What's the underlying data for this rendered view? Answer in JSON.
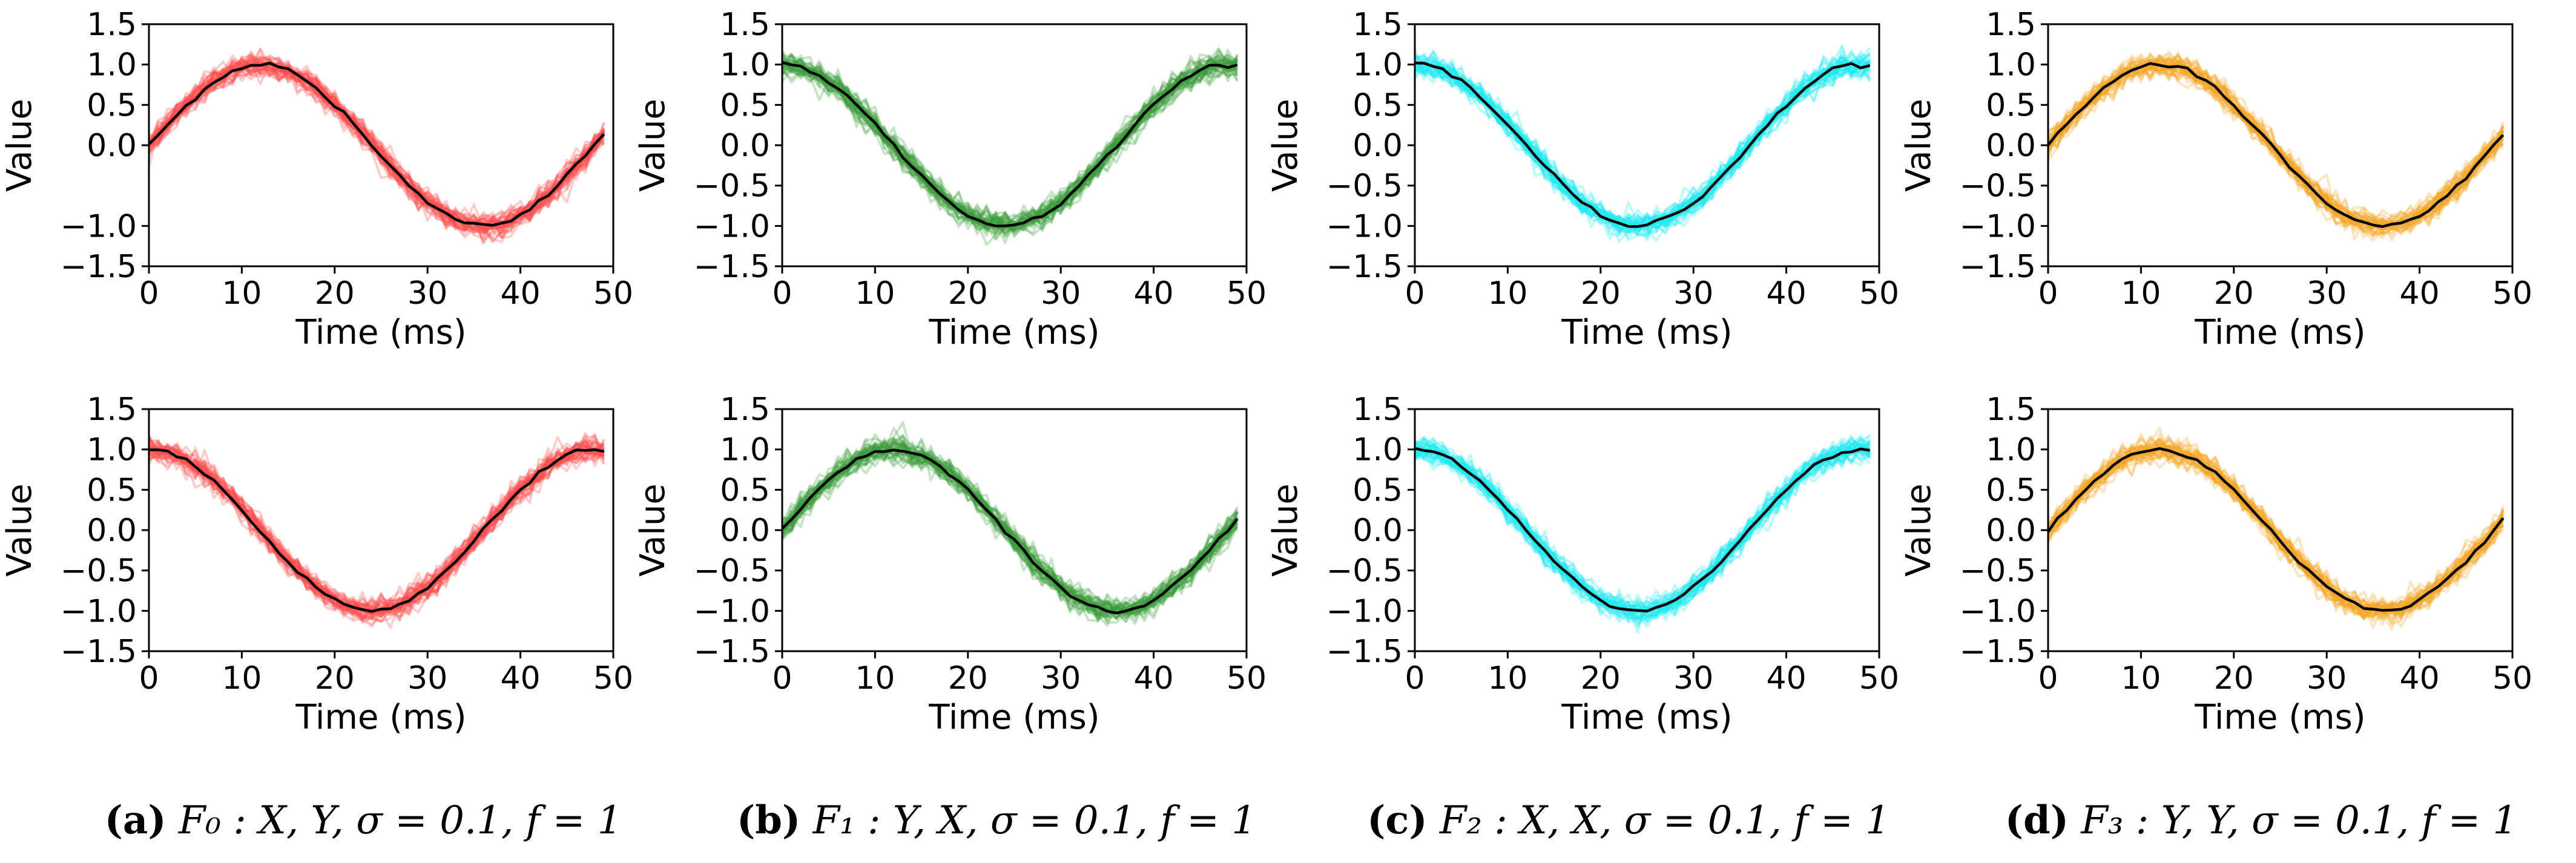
{
  "chart_data": [
    {
      "type": "line",
      "panel": "a",
      "row": 1,
      "name": "F0 X",
      "color": "#ff4d4d",
      "xlabel": "Time (ms)",
      "ylabel": "Value",
      "xlim": [
        0,
        50
      ],
      "ylim": [
        -1.5,
        1.5
      ],
      "xticks": [
        "0",
        "10",
        "20",
        "30",
        "40",
        "50"
      ],
      "yticks": [
        "1.5",
        "1.0",
        "0.5",
        "0.0",
        "−1.0",
        "−1.5"
      ],
      "series": [
        {
          "name": "mean",
          "function": "sin",
          "x_range": [
            0,
            49
          ],
          "period_ms": 48,
          "amplitude": 1.0
        }
      ],
      "noise_sigma": 0.1
    },
    {
      "type": "line",
      "panel": "b",
      "row": 1,
      "name": "F1 Y",
      "color": "#3a9a3a",
      "xlabel": "Time (ms)",
      "ylabel": "Value",
      "xlim": [
        0,
        50
      ],
      "ylim": [
        -1.5,
        1.5
      ],
      "xticks": [
        "0",
        "10",
        "20",
        "30",
        "40",
        "50"
      ],
      "yticks": [
        "1.5",
        "1.0",
        "0.5",
        "0.0",
        "−0.5",
        "−1.0",
        "−1.5"
      ],
      "series": [
        {
          "name": "mean",
          "function": "cos",
          "x_range": [
            0,
            49
          ],
          "period_ms": 48,
          "amplitude": 1.0
        }
      ],
      "noise_sigma": 0.1
    },
    {
      "type": "line",
      "panel": "c",
      "row": 1,
      "name": "F2 X",
      "color": "#1ee8f0",
      "xlabel": "Time (ms)",
      "ylabel": "Value",
      "xlim": [
        0,
        50
      ],
      "ylim": [
        -1.5,
        1.5
      ],
      "xticks": [
        "0",
        "10",
        "20",
        "30",
        "40",
        "50"
      ],
      "yticks": [
        "1.5",
        "1.0",
        "0.5",
        "0.0",
        "−0.5",
        "−1.0",
        "−1.5"
      ],
      "series": [
        {
          "name": "mean",
          "function": "cos",
          "x_range": [
            0,
            49
          ],
          "period_ms": 48,
          "amplitude": 1.0
        }
      ],
      "noise_sigma": 0.1
    },
    {
      "type": "line",
      "panel": "d",
      "row": 1,
      "name": "F3 Y",
      "color": "#f5a623",
      "xlabel": "Time (ms)",
      "ylabel": "Value",
      "xlim": [
        0,
        50
      ],
      "ylim": [
        -1.5,
        1.5
      ],
      "xticks": [
        "0",
        "10",
        "20",
        "30",
        "40",
        "50"
      ],
      "yticks": [
        "1.5",
        "1.0",
        "0.5",
        "0.0",
        "−0.5",
        "−1.0",
        "−1.5"
      ],
      "series": [
        {
          "name": "mean",
          "function": "sin",
          "x_range": [
            0,
            49
          ],
          "period_ms": 48,
          "amplitude": 1.0
        }
      ],
      "noise_sigma": 0.1
    },
    {
      "type": "line",
      "panel": "a",
      "row": 2,
      "name": "F0 Y",
      "color": "#ff4d4d",
      "xlabel": "Time (ms)",
      "ylabel": "Value",
      "xlim": [
        0,
        50
      ],
      "ylim": [
        -1.5,
        1.5
      ],
      "xticks": [
        "0",
        "10",
        "20",
        "30",
        "40",
        "50"
      ],
      "yticks": [
        "1.5",
        "1.0",
        "0.5",
        "0.0",
        "−0.5",
        "−1.0",
        "−1.5"
      ],
      "series": [
        {
          "name": "mean",
          "function": "cos",
          "x_range": [
            0,
            49
          ],
          "period_ms": 48,
          "amplitude": 1.0
        }
      ],
      "noise_sigma": 0.1
    },
    {
      "type": "line",
      "panel": "b",
      "row": 2,
      "name": "F1 X",
      "color": "#3a9a3a",
      "xlabel": "Time (ms)",
      "ylabel": "Value",
      "xlim": [
        0,
        50
      ],
      "ylim": [
        -1.5,
        1.5
      ],
      "xticks": [
        "0",
        "10",
        "20",
        "30",
        "40",
        "50"
      ],
      "yticks": [
        "1.5",
        "1.0",
        "0.5",
        "0.0",
        "−0.5",
        "−1.0",
        "−1.5"
      ],
      "series": [
        {
          "name": "mean",
          "function": "sin",
          "x_range": [
            0,
            49
          ],
          "period_ms": 48,
          "amplitude": 1.0
        }
      ],
      "noise_sigma": 0.1
    },
    {
      "type": "line",
      "panel": "c",
      "row": 2,
      "name": "F2 X",
      "color": "#1ee8f0",
      "xlabel": "Time (ms)",
      "ylabel": "Value",
      "xlim": [
        0,
        50
      ],
      "ylim": [
        -1.5,
        1.5
      ],
      "xticks": [
        "0",
        "10",
        "20",
        "30",
        "40",
        "50"
      ],
      "yticks": [
        "1.5",
        "1.0",
        "0.5",
        "0.0",
        "−0.5",
        "−1.0",
        "−1.5"
      ],
      "series": [
        {
          "name": "mean",
          "function": "cos",
          "x_range": [
            0,
            49
          ],
          "period_ms": 48,
          "amplitude": 1.0
        }
      ],
      "noise_sigma": 0.1
    },
    {
      "type": "line",
      "panel": "d",
      "row": 2,
      "name": "F3 Y",
      "color": "#f5a623",
      "xlabel": "Time (ms)",
      "ylabel": "Value",
      "xlim": [
        0,
        50
      ],
      "ylim": [
        -1.5,
        1.5
      ],
      "xticks": [
        "0",
        "10",
        "20",
        "30",
        "40",
        "50"
      ],
      "yticks": [
        "1.5",
        "1.0",
        "0.5",
        "0.0",
        "−0.5",
        "−1.0",
        "−1.5"
      ],
      "series": [
        {
          "name": "mean",
          "function": "sin",
          "x_range": [
            0,
            49
          ],
          "period_ms": 48,
          "amplitude": 1.0
        }
      ],
      "noise_sigma": 0.1
    }
  ],
  "captions": [
    {
      "label": "(a)",
      "text": "F₀ : X, Y, σ = 0.1, f = 1"
    },
    {
      "label": "(b)",
      "text": "F₁ : Y, X, σ = 0.1, f = 1"
    },
    {
      "label": "(c)",
      "text": "F₂ : X, X, σ = 0.1, f = 1"
    },
    {
      "label": "(d)",
      "text": "F₃ : Y, Y, σ = 0.1, f = 1"
    }
  ],
  "mean_line_color": "#000000"
}
